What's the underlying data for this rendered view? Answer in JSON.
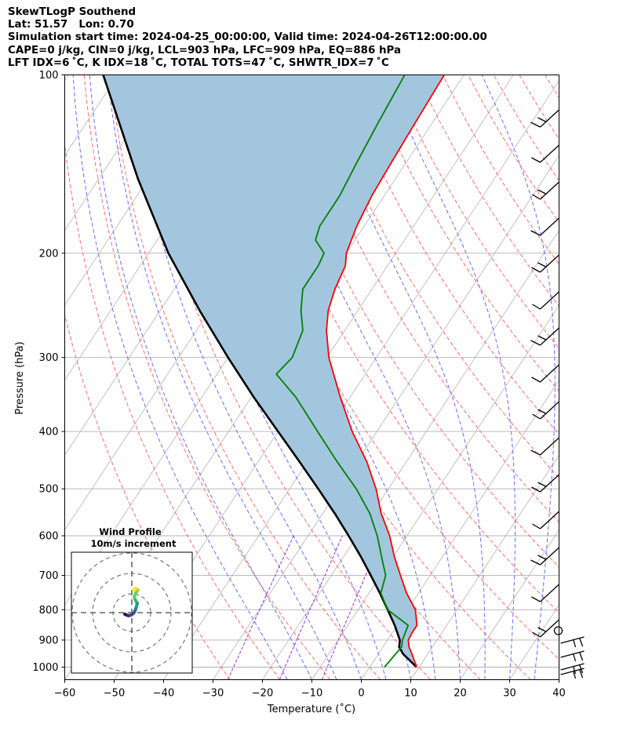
{
  "title_lines": [
    "SkewTLogP Southend",
    "Lat: 51.57   Lon: 0.70",
    "Simulation start time: 2024-04-25_00:00:00, Valid time: 2024-04-26T12:00:00.00",
    "CAPE=0 j/kg, CIN=0 j/kg, LCL=903 hPa, LFC=909 hPa, EQ=886 hPa",
    "LFT IDX=6 ˚C, K IDX=18 ˚C, TOTAL TOTS=47 ˚C, SHWTR_IDX=7 ˚C"
  ],
  "chart_data": {
    "type": "line",
    "chart_kind": "skew-T log-P diagram",
    "xlabel": "Temperature (˚C)",
    "ylabel": "Pressure (hPa)",
    "xlim": [
      -60,
      40
    ],
    "ylim": [
      1050,
      100
    ],
    "y_scale": "log",
    "x_ticks": [
      -60,
      -50,
      -40,
      -30,
      -20,
      -10,
      0,
      10,
      20,
      30,
      40
    ],
    "y_ticks": [
      1000,
      900,
      800,
      700,
      600,
      500,
      400,
      300,
      200,
      100
    ],
    "grid": true,
    "colors": {
      "temperature": "#ff0000",
      "dewpoint": "#008000",
      "parcel": "#000000",
      "cape_fill": "#a3c6df",
      "dry_adiabats": "#ff6b6b",
      "moist_adiabats": "#6b6bff",
      "mixing_ratio": "#9933cc",
      "isotherms": "#bbbbbb",
      "grid": "#b0b0b0"
    },
    "series": [
      {
        "key": "temperature",
        "pressure": [
          1000,
          950,
          925,
          900,
          875,
          850,
          800,
          750,
          700,
          650,
          600,
          550,
          500,
          450,
          400,
          350,
          300,
          270,
          250,
          230,
          210,
          200,
          180,
          160,
          140,
          120,
          100
        ],
        "values": [
          9.5,
          6.8,
          5.3,
          4.2,
          4.0,
          4.0,
          1.6,
          -2.4,
          -6.0,
          -9.8,
          -13.5,
          -18.2,
          -22.5,
          -28.0,
          -35.0,
          -42.0,
          -49.6,
          -53.7,
          -56.0,
          -57.5,
          -58.5,
          -60.0,
          -61.5,
          -62.5,
          -63.0,
          -63.5,
          -64.0
        ]
      },
      {
        "key": "dewpoint",
        "pressure": [
          1000,
          950,
          925,
          900,
          850,
          800,
          750,
          700,
          650,
          600,
          550,
          500,
          450,
          400,
          350,
          320,
          300,
          270,
          250,
          230,
          210,
          200,
          190,
          180,
          160,
          140,
          120,
          100
        ],
        "values": [
          3.0,
          3.5,
          3.8,
          3.0,
          2.2,
          -4.0,
          -7.6,
          -9.0,
          -12.4,
          -16.0,
          -20.5,
          -26.5,
          -34.0,
          -42.0,
          -51.0,
          -58.0,
          -57.0,
          -58.5,
          -61.5,
          -64.0,
          -64.0,
          -64.5,
          -68.0,
          -69.0,
          -69.0,
          -70.0,
          -71.0,
          -72.0
        ]
      },
      {
        "key": "parcel",
        "pressure": [
          1000,
          950,
          925,
          900,
          850,
          800,
          750,
          700,
          650,
          600,
          550,
          500,
          450,
          400,
          350,
          300,
          250,
          200,
          150,
          100
        ],
        "values": [
          9.5,
          5.0,
          3.3,
          2.5,
          -0.5,
          -4.0,
          -7.8,
          -12.0,
          -16.6,
          -21.8,
          -27.6,
          -34.2,
          -41.6,
          -50.0,
          -59.5,
          -70.0,
          -82.0,
          -96.0,
          -112.0,
          -133.0
        ]
      }
    ],
    "wind_barbs_right_edge": true,
    "inset": {
      "title": "Wind Profile",
      "subtitle": "10m/s increment",
      "type": "hodograph",
      "colormap": "viridis"
    }
  }
}
